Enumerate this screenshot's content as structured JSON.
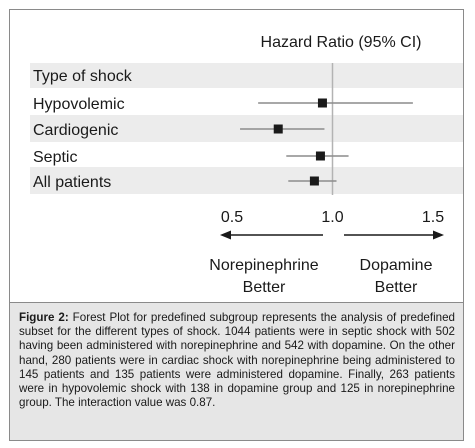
{
  "chart_data": {
    "type": "forest",
    "title": "Hazard Ratio (95% CI)",
    "categories": [
      "Type of shock",
      "Hypovolemic",
      "Cardiogenic",
      "Septic",
      "All patients"
    ],
    "estimates": [
      null,
      0.95,
      0.73,
      0.94,
      0.91
    ],
    "ci_low": [
      null,
      0.63,
      0.54,
      0.77,
      0.78
    ],
    "ci_high": [
      null,
      1.4,
      0.96,
      1.08,
      1.02
    ],
    "x_ticks": [
      "0.5",
      "1.0",
      "1.5"
    ],
    "xlim": [
      0.5,
      1.5
    ],
    "reference_line": 1.0,
    "left_direction_label": [
      "Norepinephrine",
      "Better"
    ],
    "right_direction_label": [
      "Dopamine",
      "Better"
    ],
    "colors": {
      "band": "#ececec",
      "marker": "#1a1a1a",
      "ci_line": "#8c8c8c",
      "ref_line": "#b3b3b3",
      "caption_bg": "#e6e6e6"
    }
  },
  "caption": {
    "label": "Figure 2:",
    "text": "Forest Plot for predefined subgroup represents the analysis of predefined subset for the different types of shock. 1044 patients were in septic shock with 502 having been administered with norepinephrine and 542 with dopamine. On the other hand, 280 patients were in cardiac shock with norepinephrine being administered to 145 patients and 135 patients were administered dopamine. Finally, 263 patients were in hypovolemic shock with 138 in dopamine group and 125 in norepinephrine group. The interaction value was 0.87."
  }
}
